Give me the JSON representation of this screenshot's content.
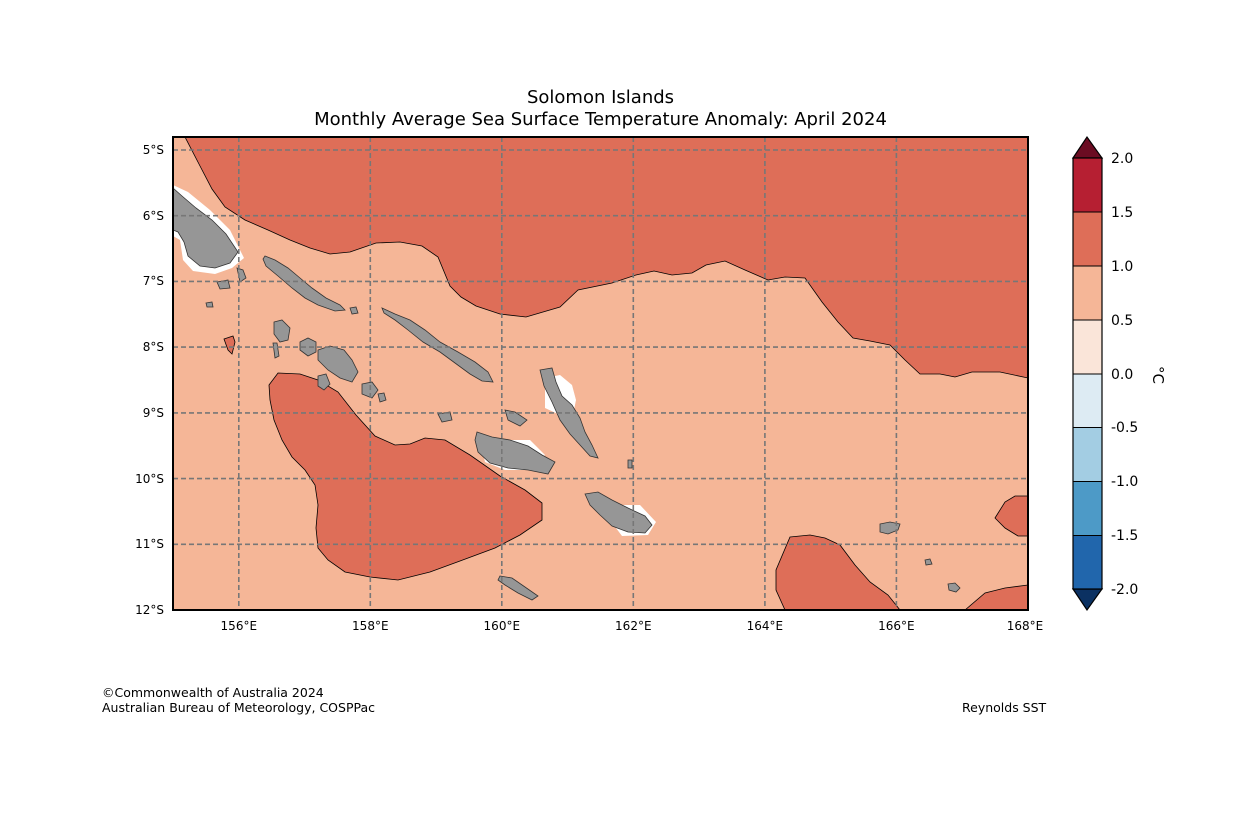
{
  "title": "Solomon Islands",
  "subtitle": "Monthly Average Sea Surface Temperature Anomaly: April 2024",
  "map": {
    "region": "Solomon Islands",
    "lon_range": [
      155,
      168
    ],
    "lat_range": [
      -12,
      -4.8
    ],
    "lat_ticks": [
      "5°S",
      "6°S",
      "7°S",
      "8°S",
      "9°S",
      "10°S",
      "11°S",
      "12°S"
    ],
    "lon_ticks": [
      "156°E",
      "158°E",
      "160°E",
      "162°E",
      "164°E",
      "166°E",
      "168°E"
    ],
    "gridlines": true,
    "land_color": "#969696",
    "fields": [
      {
        "range": "0.5 to 1.0",
        "color": "#f5b697"
      },
      {
        "range": "1.0 to 1.5",
        "color": "#de6e58"
      }
    ]
  },
  "colorbar": {
    "unit": "°C",
    "labels": [
      "2.0",
      "1.5",
      "1.0",
      "0.5",
      "0.0",
      "-0.5",
      "-1.0",
      "-1.5",
      "-2.0"
    ],
    "bins": [
      {
        "range": "1.5 to 2.0",
        "color": "#b61f32"
      },
      {
        "range": "1.0 to 1.5",
        "color": "#de6e58"
      },
      {
        "range": "0.5 to 1.0",
        "color": "#f5b697"
      },
      {
        "range": "0.0 to 0.5",
        "color": "#fae5d9"
      },
      {
        "range": "-0.5 to 0.0",
        "color": "#ddebf3"
      },
      {
        "range": "-1.0 to -0.5",
        "color": "#a3cde3"
      },
      {
        "range": "-1.5 to -1.0",
        "color": "#4d9ac7"
      },
      {
        "range": "-2.0 to -1.5",
        "color": "#2166ac"
      }
    ],
    "over_color": "#6b0c22",
    "under_color": "#0b3162"
  },
  "credits": {
    "line1": "©Commonwealth of Australia 2024",
    "line2": "Australian Bureau of Meteorology, COSPPac",
    "source": "Reynolds SST"
  }
}
